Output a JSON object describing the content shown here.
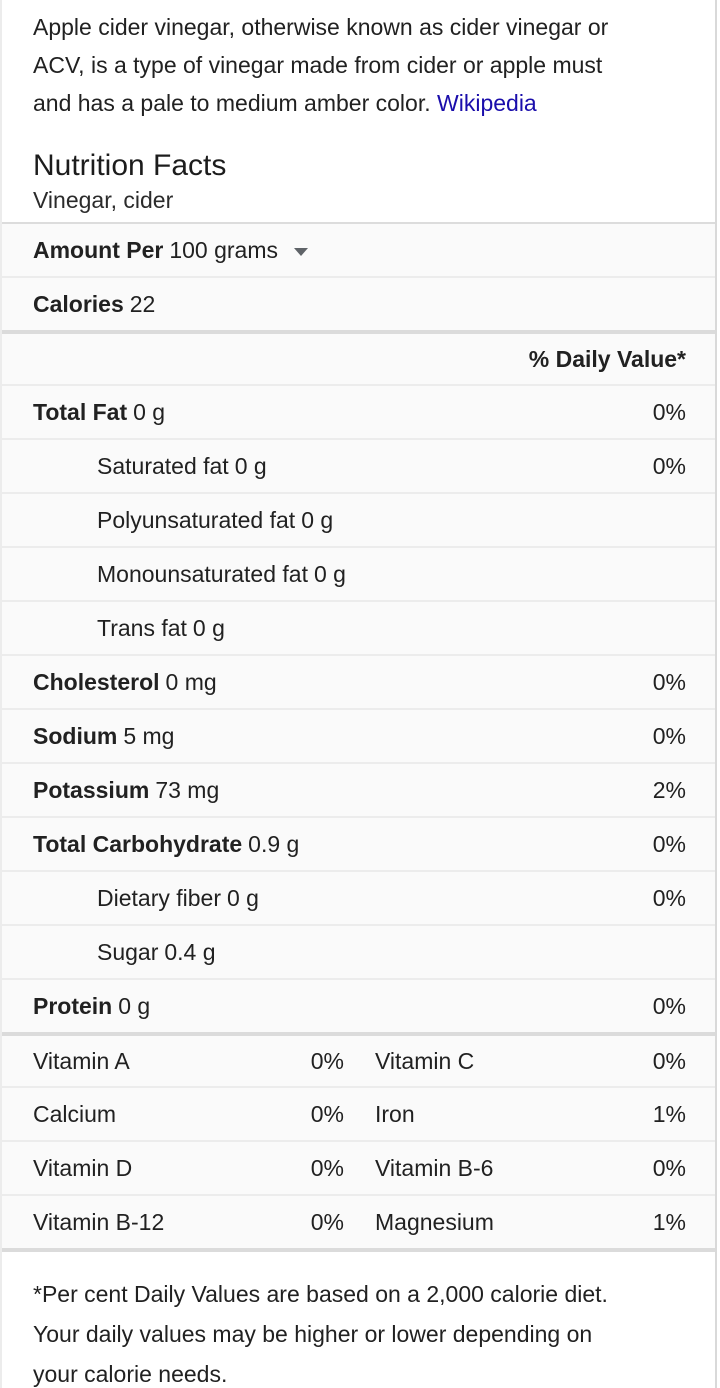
{
  "colors": {
    "link": "#1a0dab",
    "row_bg": "#fafafa",
    "divider": "#dbdbdb"
  },
  "description": {
    "lines": [
      "Apple cider vinegar, otherwise known as cider vinegar or",
      "ACV, is a type of vinegar made from cider or apple must",
      "and has a pale to medium amber color."
    ],
    "link_text": "Wikipedia"
  },
  "header": {
    "title": "Nutrition Facts",
    "subtitle": "Vinegar, cider"
  },
  "serving": {
    "label": "Amount Per",
    "value": "100 grams"
  },
  "calories": {
    "label": "Calories",
    "value": "22"
  },
  "daily_value_header": "% Daily Value*",
  "nutrients": [
    {
      "label": "Total Fat",
      "amount": "0 g",
      "dv": "0%"
    },
    {
      "label": "Saturated fat",
      "amount": "0 g",
      "dv": "0%"
    },
    {
      "label": "Polyunsaturated fat",
      "amount": "0 g",
      "dv": ""
    },
    {
      "label": "Monounsaturated fat",
      "amount": "0 g",
      "dv": ""
    },
    {
      "label": "Trans fat",
      "amount": "0 g",
      "dv": ""
    },
    {
      "label": "Cholesterol",
      "amount": "0 mg",
      "dv": "0%"
    },
    {
      "label": "Sodium",
      "amount": "5 mg",
      "dv": "0%"
    },
    {
      "label": "Potassium",
      "amount": "73 mg",
      "dv": "2%"
    },
    {
      "label": "Total Carbohydrate",
      "amount": "0.9 g",
      "dv": "0%"
    },
    {
      "label": "Dietary fiber",
      "amount": "0 g",
      "dv": "0%"
    },
    {
      "label": "Sugar",
      "amount": "0.4 g",
      "dv": ""
    },
    {
      "label": "Protein",
      "amount": "0 g",
      "dv": "0%"
    }
  ],
  "vitamins": [
    {
      "left_label": "Vitamin A",
      "left_value": "0%",
      "right_label": "Vitamin C",
      "right_value": "0%"
    },
    {
      "left_label": "Calcium",
      "left_value": "0%",
      "right_label": "Iron",
      "right_value": "1%"
    },
    {
      "left_label": "Vitamin D",
      "left_value": "0%",
      "right_label": "Vitamin B-6",
      "right_value": "0%"
    },
    {
      "left_label": "Vitamin B-12",
      "left_value": "0%",
      "right_label": "Magnesium",
      "right_value": "1%"
    }
  ],
  "footnote": {
    "lines": [
      "*Per cent Daily Values are based on a 2,000 calorie diet.",
      "Your daily values may be higher or lower depending on",
      "your calorie needs."
    ]
  }
}
